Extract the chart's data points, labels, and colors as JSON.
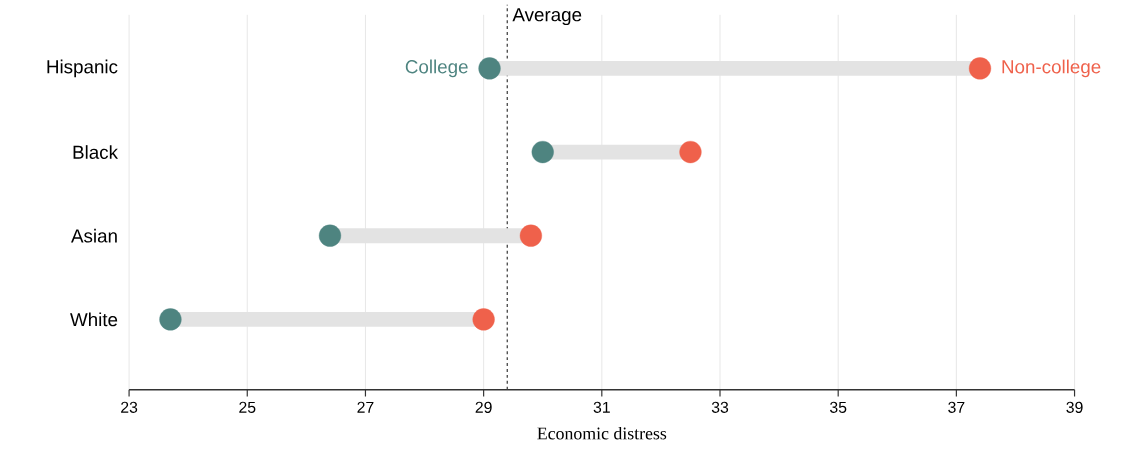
{
  "chart_data": {
    "type": "scatter",
    "orientation": "horizontal",
    "xlabel": "Economic distress",
    "categories": [
      "Hispanic",
      "Black",
      "Asian",
      "White"
    ],
    "xlim": [
      23,
      39
    ],
    "xticks": [
      23,
      25,
      27,
      29,
      31,
      33,
      35,
      37,
      39
    ],
    "grid": "x",
    "marker": "circle",
    "series": [
      {
        "name": "College",
        "color": "#4e8480",
        "values": [
          29.1,
          30.0,
          26.4,
          23.7
        ]
      },
      {
        "name": "Non-college",
        "color": "#ef614b",
        "values": [
          37.4,
          32.5,
          29.8,
          29.0
        ]
      }
    ],
    "ref_lines": [
      {
        "axis": "x",
        "value": 29.4,
        "label": "Average",
        "color": "#444444",
        "line_style": "dashed"
      }
    ]
  }
}
